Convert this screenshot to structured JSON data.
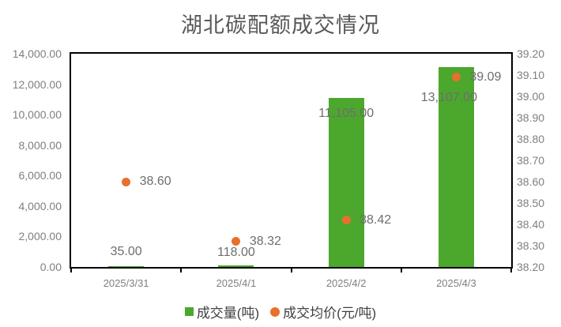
{
  "chart_data": {
    "type": "combo-bar-scatter",
    "title": "湖北碳配额成交情况",
    "categories": [
      "2025/3/31",
      "2025/4/1",
      "2025/4/2",
      "2025/4/3"
    ],
    "series": [
      {
        "name": "成交量(吨)",
        "type": "bar",
        "axis": "left",
        "color": "#4ca72d",
        "values": [
          35,
          118,
          11105,
          13107
        ],
        "labels": [
          "35.00",
          "118.00",
          "11,105.00",
          "13,107.00"
        ]
      },
      {
        "name": "成交均价(元/吨)",
        "type": "scatter",
        "axis": "right",
        "color": "#e8702c",
        "values": [
          38.6,
          38.32,
          38.42,
          39.09
        ],
        "labels": [
          "38.60",
          "38.32",
          "38.42",
          "39.09"
        ]
      }
    ],
    "left_axis": {
      "min": 0,
      "max": 14000,
      "step": 2000,
      "ticks_top_to_bottom": [
        "14,000.00",
        "12,000.00",
        "10,000.00",
        "8,000.00",
        "6,000.00",
        "4,000.00",
        "2,000.00",
        "0.00"
      ]
    },
    "right_axis": {
      "min": 38.2,
      "max": 39.2,
      "step": 0.1,
      "ticks_top_to_bottom": [
        "39.20",
        "39.10",
        "39.00",
        "38.90",
        "38.80",
        "38.70",
        "38.60",
        "38.50",
        "38.40",
        "38.30",
        "38.20"
      ]
    },
    "legend_position": "bottom",
    "gridlines": "off",
    "plot_border": "#000000"
  }
}
